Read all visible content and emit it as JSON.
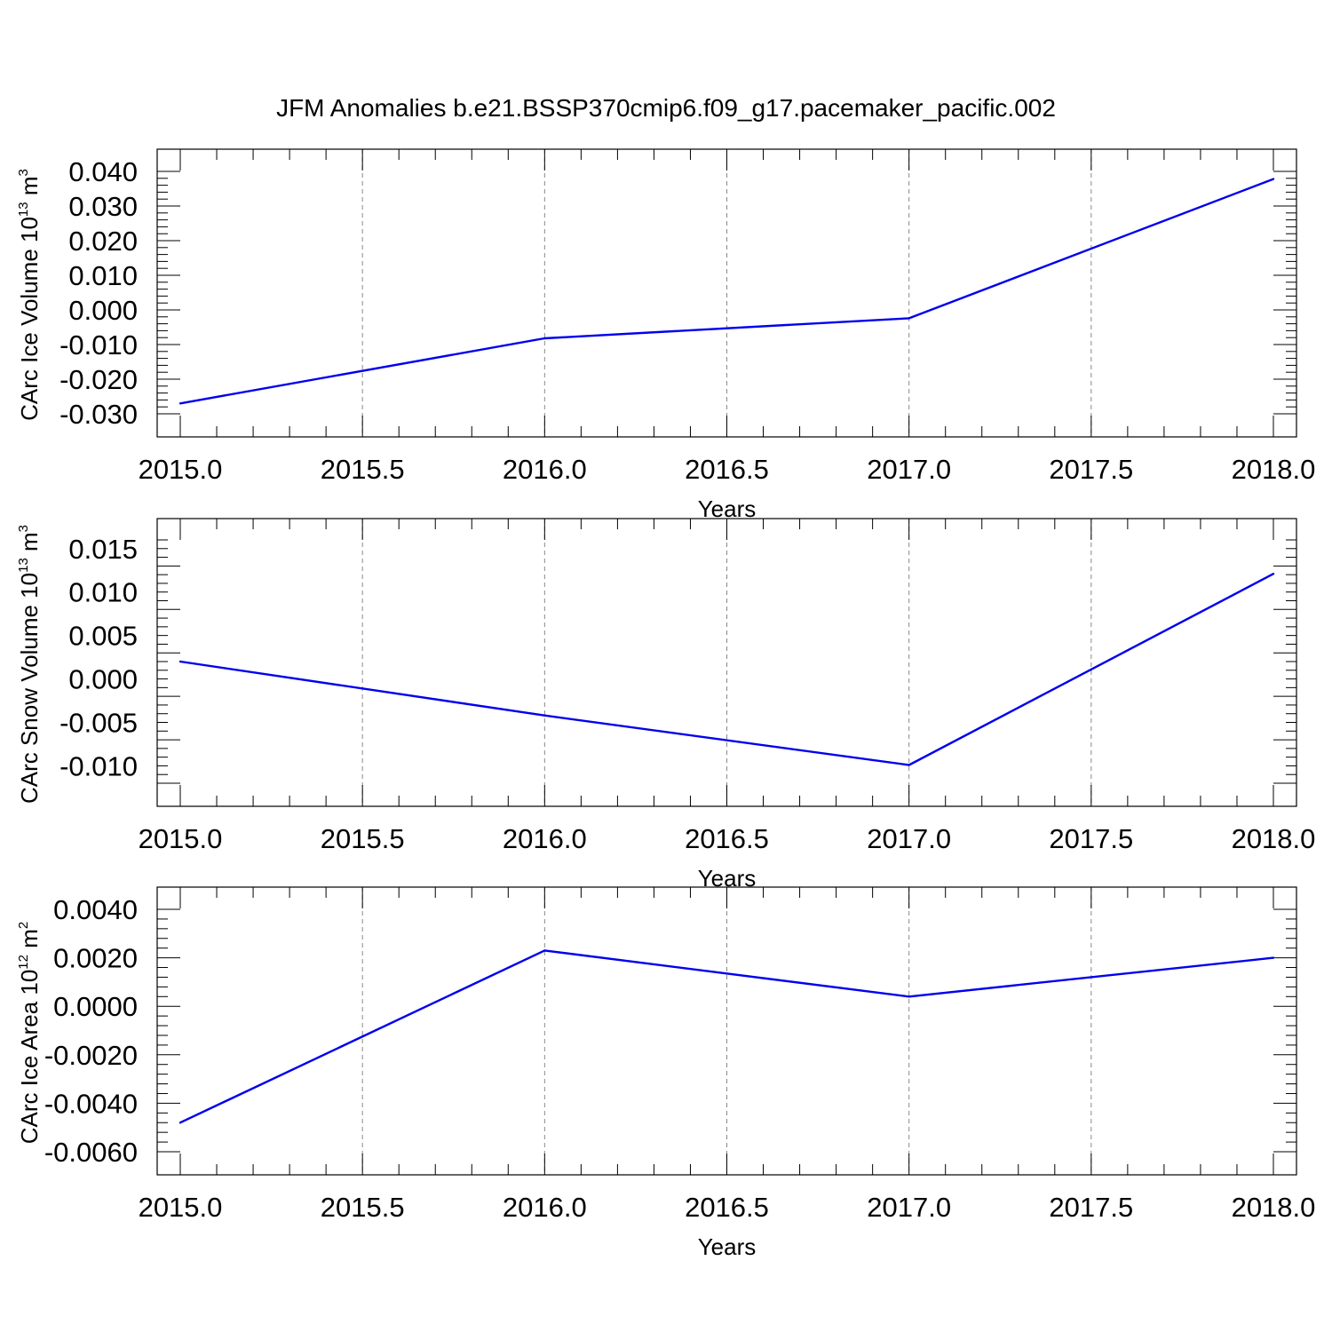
{
  "title": "JFM Anomalies b.e21.BSSP370cmip6.f09_g17.pacemaker_pacific.002",
  "chart_data": [
    {
      "type": "line",
      "title": "",
      "xlabel": "Years",
      "ylabel_text": "CArc Ice Volume 10",
      "ylabel_exp": "13",
      "ylabel_unit": "m",
      "ylabel_unit_exp": "3",
      "x": [
        2015.0,
        2016.0,
        2017.0,
        2018.0
      ],
      "series": [
        {
          "values": [
            -0.027,
            -0.0082,
            -0.0024,
            0.0378
          ],
          "color": "#0000ee"
        }
      ],
      "xlim": [
        2015.0,
        2018.0
      ],
      "ylim": [
        -0.03,
        0.04
      ],
      "xticks": [
        "2015.0",
        "2015.5",
        "2016.0",
        "2016.5",
        "2017.0",
        "2017.5",
        "2018.0"
      ],
      "yticks": [
        "-0.030",
        "-0.020",
        "-0.010",
        "0.000",
        "0.010",
        "0.020",
        "0.030",
        "0.040"
      ],
      "grid": "vertical dashed"
    },
    {
      "type": "line",
      "title": "",
      "xlabel": "Years",
      "ylabel_text": "CArc Snow Volume 10",
      "ylabel_exp": "13",
      "ylabel_unit": "m",
      "ylabel_unit_exp": "3",
      "x": [
        2015.0,
        2016.0,
        2017.0,
        2018.0
      ],
      "series": [
        {
          "values": [
            0.002,
            -0.0042,
            -0.0099,
            0.0121
          ],
          "color": "#0000ee"
        }
      ],
      "xlim": [
        2015.0,
        2018.0
      ],
      "ylim": [
        -0.012,
        0.016
      ],
      "xticks": [
        "2015.0",
        "2015.5",
        "2016.0",
        "2016.5",
        "2017.0",
        "2017.5",
        "2018.0"
      ],
      "yticks": [
        "-0.010",
        "-0.005",
        "0.000",
        "0.005",
        "0.010",
        "0.015"
      ],
      "grid": "vertical dashed"
    },
    {
      "type": "line",
      "title": "",
      "xlabel": "Years",
      "ylabel_text": "CArc Ice Area 10",
      "ylabel_exp": "12",
      "ylabel_unit": "m",
      "ylabel_unit_exp": "2",
      "x": [
        2015.0,
        2016.0,
        2017.0,
        2018.0
      ],
      "series": [
        {
          "values": [
            -0.0048,
            0.0023,
            0.0004,
            0.002
          ],
          "color": "#0000ee"
        }
      ],
      "xlim": [
        2015.0,
        2018.0
      ],
      "ylim": [
        -0.006,
        0.004
      ],
      "xticks": [
        "2015.0",
        "2015.5",
        "2016.0",
        "2016.5",
        "2017.0",
        "2017.5",
        "2018.0"
      ],
      "yticks": [
        "-0.0060",
        "-0.0040",
        "-0.0020",
        "0.0000",
        "0.0020",
        "0.0040"
      ],
      "grid": "vertical dashed"
    }
  ]
}
